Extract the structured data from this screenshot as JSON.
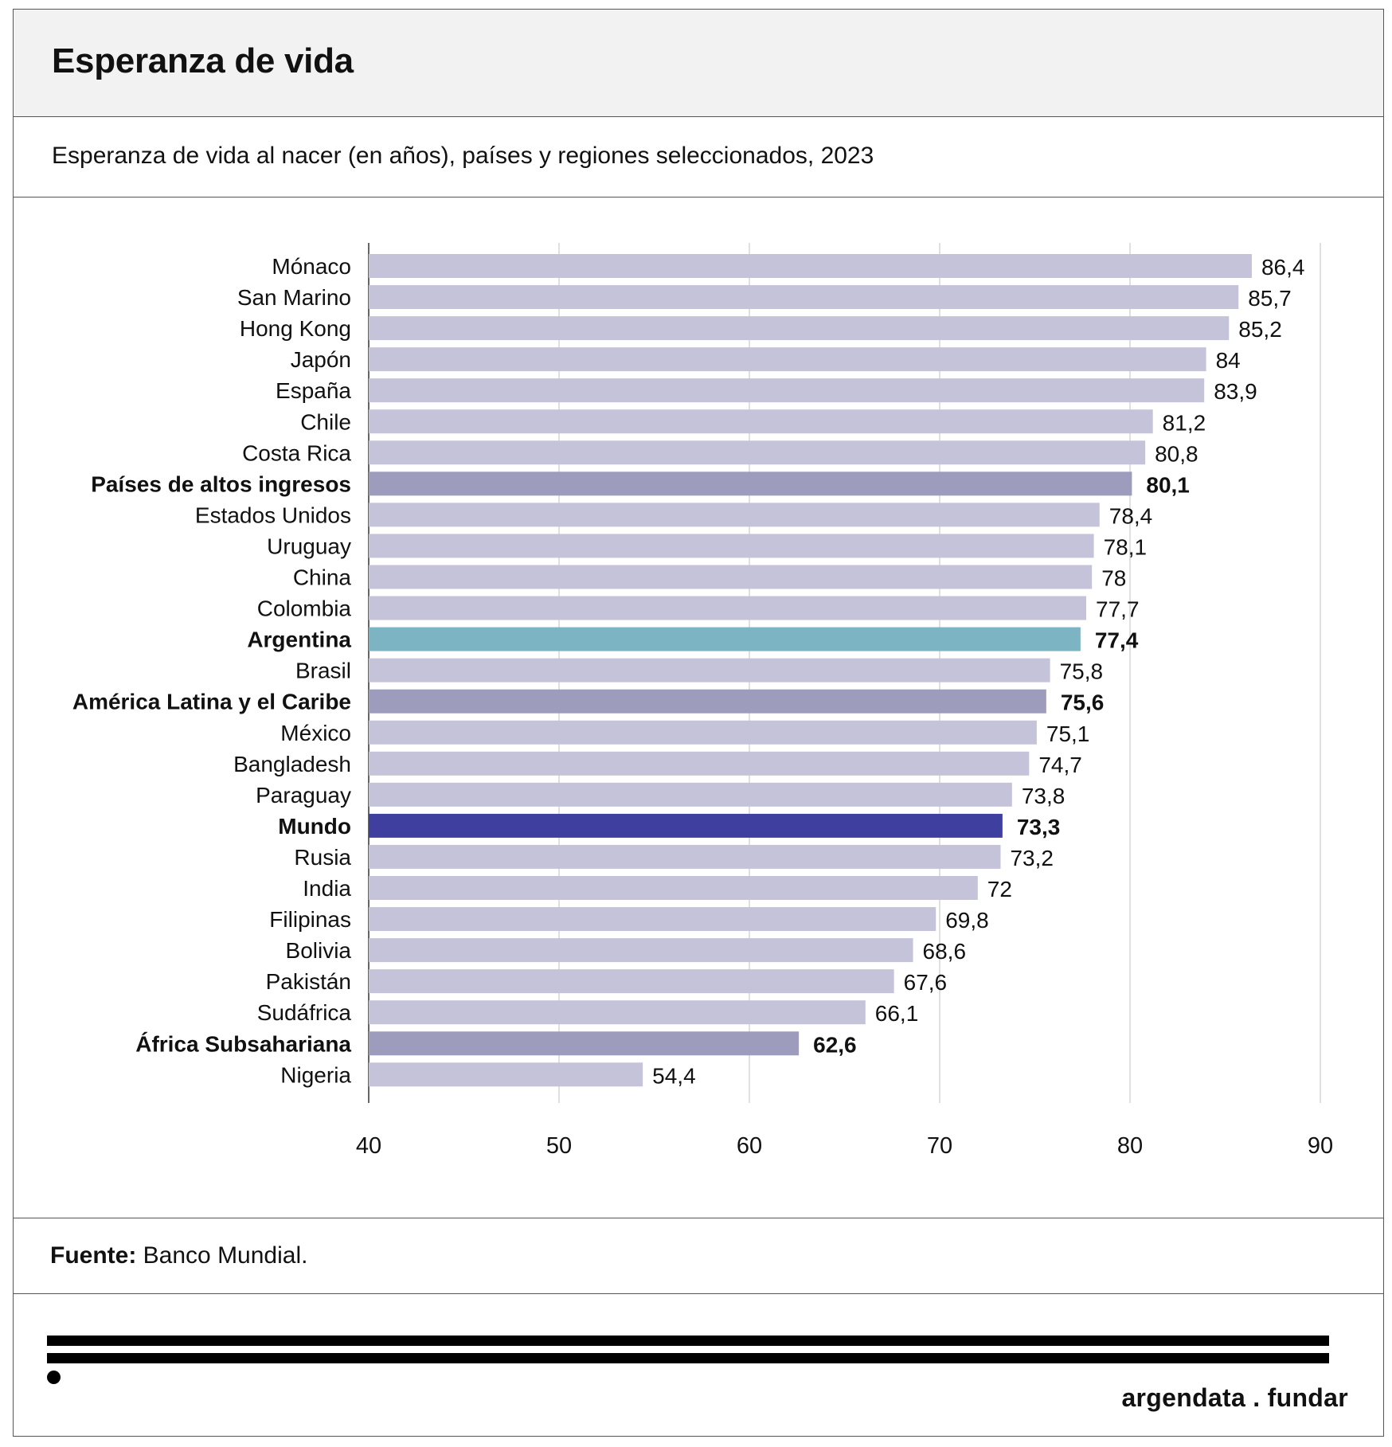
{
  "header": {
    "title": "Esperanza de vida",
    "subtitle": "Esperanza de vida al nacer (en años), países y regiones seleccionados, 2023"
  },
  "footer": {
    "source_label": "Fuente:",
    "source_text": "Banco Mundial.",
    "brand": "argendata . fundar"
  },
  "colors": {
    "country": "#c5c3d9",
    "region": "#9d9cbd",
    "argentina": "#7db4c3",
    "world": "#3f3fa0",
    "grid": "#cccccc",
    "axis": "#333333"
  },
  "chart_data": {
    "type": "bar",
    "orientation": "horizontal",
    "title": "Esperanza de vida",
    "subtitle": "Esperanza de vida al nacer (en años), países y regiones seleccionados, 2023",
    "xlabel": "",
    "ylabel": "",
    "xlim": [
      40,
      90
    ],
    "xticks": [
      "40",
      "50",
      "60",
      "70",
      "80",
      "90"
    ],
    "grid": true,
    "categories": [
      "Mónaco",
      "San Marino",
      "Hong Kong",
      "Japón",
      "España",
      "Chile",
      "Costa Rica",
      "Países de altos ingresos",
      "Estados Unidos",
      "Uruguay",
      "China",
      "Colombia",
      "Argentina",
      "Brasil",
      "América Latina y el Caribe",
      "México",
      "Bangladesh",
      "Paraguay",
      "Mundo",
      "Rusia",
      "India",
      "Filipinas",
      "Bolivia",
      "Pakistán",
      "Sudáfrica",
      "África Subsahariana",
      "Nigeria"
    ],
    "values": [
      86.4,
      85.7,
      85.2,
      84,
      83.9,
      81.2,
      80.8,
      80.1,
      78.4,
      78.1,
      78,
      77.7,
      77.4,
      75.8,
      75.6,
      75.1,
      74.7,
      73.8,
      73.3,
      73.2,
      72,
      69.8,
      68.6,
      67.6,
      66.1,
      62.6,
      54.4
    ],
    "value_labels": [
      "86,4",
      "85,7",
      "85,2",
      "84",
      "83,9",
      "81,2",
      "80,8",
      "80,1",
      "78,4",
      "78,1",
      "78",
      "77,7",
      "77,4",
      "75,8",
      "75,6",
      "75,1",
      "74,7",
      "73,8",
      "73,3",
      "73,2",
      "72",
      "69,8",
      "68,6",
      "67,6",
      "66,1",
      "62,6",
      "54,4"
    ],
    "kinds": [
      "country",
      "country",
      "country",
      "country",
      "country",
      "country",
      "country",
      "region",
      "country",
      "country",
      "country",
      "country",
      "argentina",
      "country",
      "region",
      "country",
      "country",
      "country",
      "world",
      "country",
      "country",
      "country",
      "country",
      "country",
      "country",
      "region",
      "country"
    ]
  }
}
